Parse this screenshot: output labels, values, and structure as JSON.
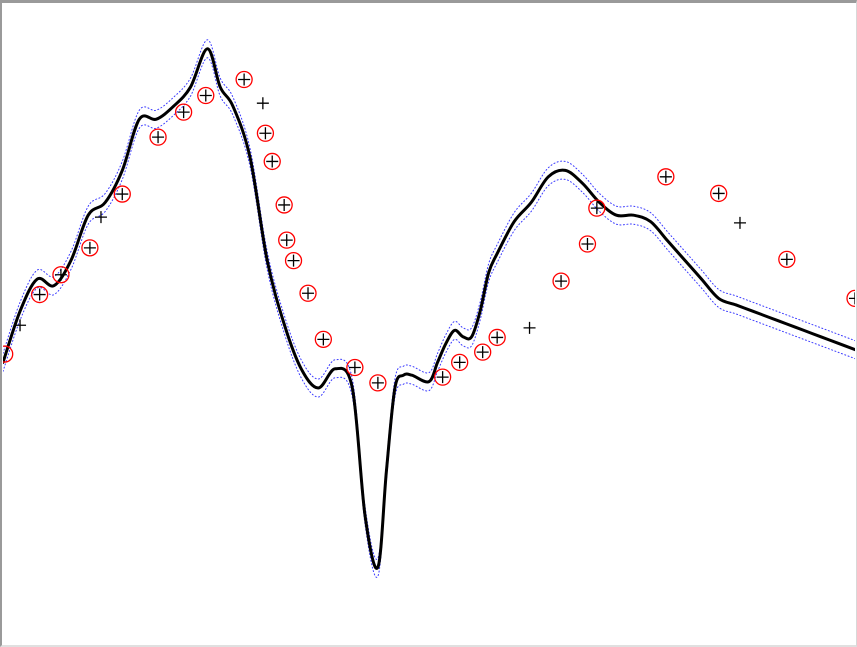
{
  "chart_data": {
    "type": "scatter",
    "title": "",
    "xlabel": "",
    "ylabel": "",
    "xlim": [
      0,
      1
    ],
    "ylim": [
      0,
      1
    ],
    "grid": false,
    "legend": "none",
    "colors": {
      "fit_curve": "#000000",
      "band": "#3a3aff",
      "support_circle": "#ff0000",
      "data_point": "#000000"
    },
    "series": [
      {
        "kind": "fit-curve",
        "x": [
          0.0,
          0.02,
          0.04,
          0.06,
          0.08,
          0.1,
          0.12,
          0.14,
          0.16,
          0.18,
          0.2,
          0.22,
          0.24,
          0.255,
          0.27,
          0.29,
          0.31,
          0.33,
          0.35,
          0.37,
          0.39,
          0.41,
          0.425,
          0.44,
          0.45,
          0.46,
          0.47,
          0.48,
          0.5,
          0.51,
          0.52,
          0.53,
          0.54,
          0.55,
          0.56,
          0.57,
          0.58,
          0.6,
          0.62,
          0.64,
          0.66,
          0.68,
          0.7,
          0.72,
          0.74,
          0.76,
          0.78,
          0.8,
          0.82,
          0.84,
          0.86,
          0.88,
          0.9,
          0.92,
          0.94,
          0.96,
          0.98,
          1.0
        ],
        "y": [
          0.44,
          0.52,
          0.57,
          0.56,
          0.6,
          0.67,
          0.69,
          0.74,
          0.82,
          0.82,
          0.84,
          0.87,
          0.93,
          0.87,
          0.84,
          0.76,
          0.6,
          0.5,
          0.43,
          0.4,
          0.43,
          0.4,
          0.2,
          0.12,
          0.27,
          0.4,
          0.42,
          0.42,
          0.41,
          0.44,
          0.47,
          0.49,
          0.48,
          0.48,
          0.52,
          0.58,
          0.61,
          0.66,
          0.69,
          0.73,
          0.74,
          0.72,
          0.69,
          0.67,
          0.67,
          0.66,
          0.63,
          0.6,
          0.57,
          0.54,
          0.53,
          0.52,
          0.51,
          0.5,
          0.49,
          0.48,
          0.47,
          0.46
        ]
      },
      {
        "kind": "support-vectors",
        "x": [
          0.002,
          0.043,
          0.068,
          0.102,
          0.14,
          0.182,
          0.212,
          0.238,
          0.283,
          0.308,
          0.316,
          0.33,
          0.333,
          0.341,
          0.358,
          0.376,
          0.413,
          0.44,
          0.516,
          0.536,
          0.563,
          0.58,
          0.655,
          0.686,
          0.697,
          0.778,
          0.84,
          0.92,
          1.0
        ],
        "y": [
          0.453,
          0.546,
          0.577,
          0.619,
          0.703,
          0.792,
          0.831,
          0.857,
          0.882,
          0.798,
          0.754,
          0.686,
          0.631,
          0.599,
          0.548,
          0.476,
          0.432,
          0.408,
          0.417,
          0.44,
          0.456,
          0.479,
          0.567,
          0.625,
          0.681,
          0.73,
          0.704,
          0.601,
          0.54
        ]
      },
      {
        "kind": "data-points",
        "x": [
          0.02,
          0.043,
          0.068,
          0.102,
          0.115,
          0.14,
          0.182,
          0.212,
          0.238,
          0.283,
          0.305,
          0.308,
          0.316,
          0.33,
          0.333,
          0.341,
          0.358,
          0.376,
          0.413,
          0.44,
          0.516,
          0.536,
          0.563,
          0.58,
          0.618,
          0.655,
          0.686,
          0.697,
          0.778,
          0.84,
          0.865,
          0.92,
          1.0
        ],
        "y": [
          0.498,
          0.546,
          0.577,
          0.619,
          0.667,
          0.703,
          0.792,
          0.831,
          0.857,
          0.882,
          0.845,
          0.798,
          0.754,
          0.686,
          0.631,
          0.599,
          0.548,
          0.476,
          0.432,
          0.408,
          0.417,
          0.44,
          0.456,
          0.479,
          0.494,
          0.567,
          0.625,
          0.681,
          0.73,
          0.704,
          0.658,
          0.601,
          0.54
        ]
      }
    ]
  }
}
